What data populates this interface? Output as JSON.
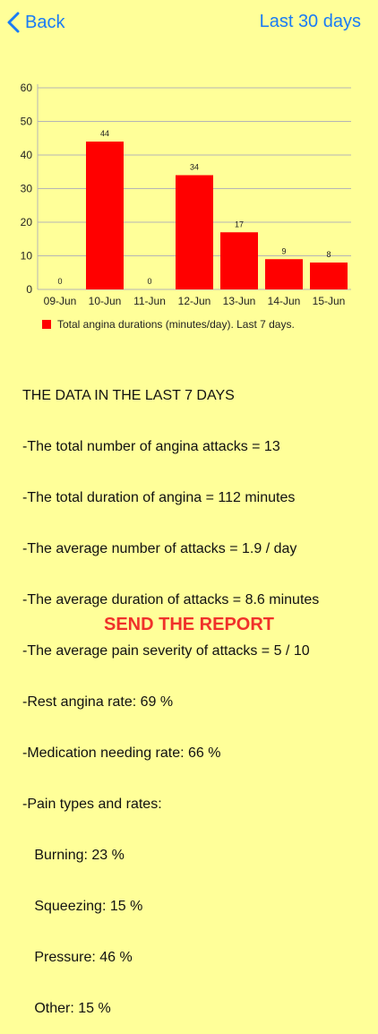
{
  "nav": {
    "back_label": "Back",
    "range_label": "Last 30 days",
    "accent_color": "#1a7cf5",
    "back_icon": "chevron-left-icon"
  },
  "chart_data": {
    "type": "bar",
    "categories": [
      "09-Jun",
      "10-Jun",
      "11-Jun",
      "12-Jun",
      "13-Jun",
      "14-Jun",
      "15-Jun"
    ],
    "series": [
      {
        "name": "Total angina durations (minutes/day). Last 7 days.",
        "values": [
          0,
          44,
          0,
          34,
          17,
          9,
          8
        ],
        "color": "#ff0000"
      }
    ],
    "ylim": [
      0,
      60
    ],
    "yticks": [
      0,
      10,
      20,
      30,
      40,
      50,
      60
    ],
    "grid": true,
    "legend": "bottom-left"
  },
  "stats": {
    "heading": "THE DATA IN THE LAST 7 DAYS",
    "lines": [
      "-The total number of angina attacks = 13",
      "-The total duration of angina = 112 minutes",
      "-The average number of attacks = 1.9 / day",
      "-The average duration of attacks = 8.6 minutes",
      "-The average pain severity of attacks = 5 / 10",
      "-Rest angina rate: 69 %",
      "-Medication needing rate: 66 %",
      "-Pain types and rates:",
      "   Burning: 23 %",
      "   Squeezing: 15 %",
      "   Pressure: 46 %",
      "   Other: 15 %"
    ]
  },
  "send_button": {
    "label": "SEND THE REPORT",
    "color": "#f0312a"
  }
}
